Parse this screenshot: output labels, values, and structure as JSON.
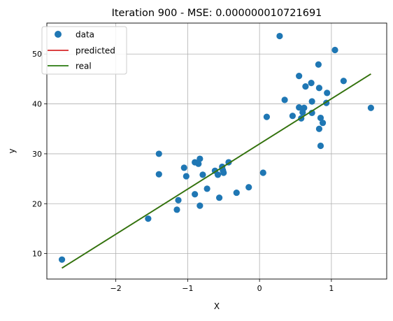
{
  "chart_data": {
    "type": "scatter",
    "title": "Iteration 900 - MSE: 0.000000010721691",
    "xlabel": "X",
    "ylabel": "y",
    "xlim": [
      -2.96,
      1.77
    ],
    "ylim": [
      4.9,
      56.2
    ],
    "xticks": [
      -2,
      -1,
      0,
      1
    ],
    "xtick_labels": [
      "−2",
      "−1",
      "0",
      "1"
    ],
    "yticks": [
      10,
      20,
      30,
      40,
      50
    ],
    "ytick_labels": [
      "10",
      "20",
      "30",
      "40",
      "50"
    ],
    "grid": true,
    "legend": "upper-left",
    "series": [
      {
        "name": "data",
        "kind": "scatter",
        "color": "#1f77b4",
        "points": [
          [
            -2.75,
            8.8
          ],
          [
            -1.55,
            17.0
          ],
          [
            -1.4,
            30.0
          ],
          [
            -1.4,
            25.9
          ],
          [
            -1.15,
            18.8
          ],
          [
            -1.13,
            20.7
          ],
          [
            -1.05,
            27.2
          ],
          [
            -1.02,
            25.5
          ],
          [
            -0.9,
            28.3
          ],
          [
            -0.9,
            21.9
          ],
          [
            -0.85,
            28.0
          ],
          [
            -0.83,
            29.0
          ],
          [
            -0.83,
            19.6
          ],
          [
            -0.79,
            25.8
          ],
          [
            -0.73,
            23.0
          ],
          [
            -0.62,
            26.6
          ],
          [
            -0.58,
            25.8
          ],
          [
            -0.56,
            21.2
          ],
          [
            -0.52,
            27.4
          ],
          [
            -0.51,
            26.7
          ],
          [
            -0.5,
            26.2
          ],
          [
            -0.43,
            28.3
          ],
          [
            -0.32,
            22.2
          ],
          [
            -0.15,
            23.3
          ],
          [
            0.05,
            26.2
          ],
          [
            0.1,
            37.4
          ],
          [
            0.28,
            53.6
          ],
          [
            0.35,
            40.8
          ],
          [
            0.46,
            37.6
          ],
          [
            0.55,
            39.3
          ],
          [
            0.55,
            45.6
          ],
          [
            0.58,
            37.1
          ],
          [
            0.6,
            38.3
          ],
          [
            0.62,
            39.2
          ],
          [
            0.64,
            43.5
          ],
          [
            0.72,
            44.2
          ],
          [
            0.73,
            40.5
          ],
          [
            0.73,
            38.2
          ],
          [
            0.82,
            47.9
          ],
          [
            0.83,
            43.2
          ],
          [
            0.83,
            35.0
          ],
          [
            0.85,
            37.2
          ],
          [
            0.85,
            31.6
          ],
          [
            0.88,
            36.2
          ],
          [
            0.93,
            40.2
          ],
          [
            0.94,
            42.2
          ],
          [
            1.05,
            50.8
          ],
          [
            1.17,
            44.6
          ],
          [
            1.55,
            39.2
          ]
        ]
      },
      {
        "name": "predicted",
        "kind": "line",
        "color": "#d62728",
        "x": [
          -2.75,
          1.55
        ],
        "y": [
          7.1,
          46.0
        ]
      },
      {
        "name": "real",
        "kind": "line",
        "color": "#2a7a0f",
        "x": [
          -2.75,
          1.55
        ],
        "y": [
          7.1,
          46.0
        ]
      }
    ]
  }
}
